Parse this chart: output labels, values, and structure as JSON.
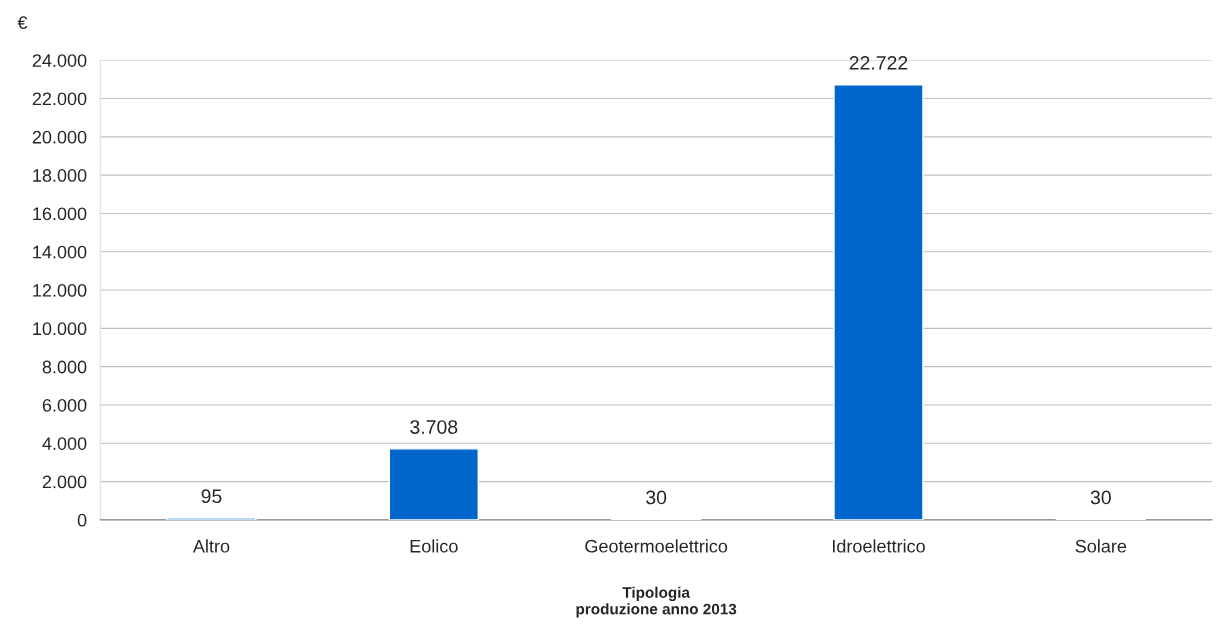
{
  "chart_data": {
    "type": "bar",
    "categories": [
      "Altro",
      "Eolico",
      "Geotermoelettrico",
      "Idroelettrico",
      "Solare"
    ],
    "values": [
      95,
      3708,
      30,
      22722,
      30
    ],
    "value_labels": [
      "95",
      "3.708",
      "30",
      "22.722",
      "30"
    ],
    "color": "#0066cc",
    "ylabel": "€",
    "xlabel": "Tipologia\nproduzione anno 2013",
    "ylim": [
      0,
      24000
    ],
    "yticks": [
      {
        "value": 0,
        "label": "0"
      },
      {
        "value": 2000,
        "label": "2.000"
      },
      {
        "value": 4000,
        "label": "4.000"
      },
      {
        "value": 6000,
        "label": "6.000"
      },
      {
        "value": 8000,
        "label": "8.000"
      },
      {
        "value": 10000,
        "label": "10.000"
      },
      {
        "value": 12000,
        "label": "12.000"
      },
      {
        "value": 14000,
        "label": "14.000"
      },
      {
        "value": 16000,
        "label": "16.000"
      },
      {
        "value": 18000,
        "label": "18.000"
      },
      {
        "value": 20000,
        "label": "20.000"
      },
      {
        "value": 22000,
        "label": "22.000"
      },
      {
        "value": 24000,
        "label": "24.000"
      }
    ],
    "grid": "y",
    "legend": false
  }
}
